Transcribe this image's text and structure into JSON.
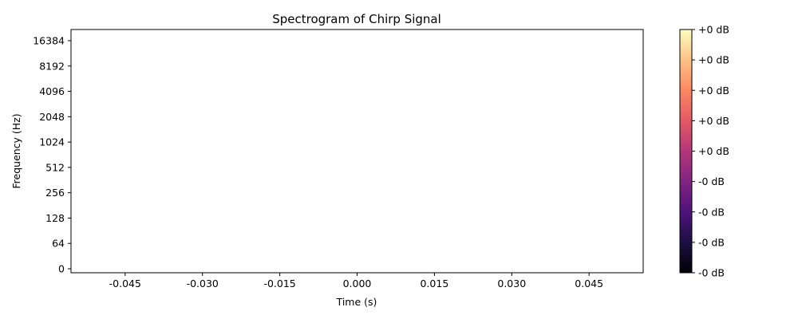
{
  "chart_data": {
    "type": "heatmap",
    "title": "Spectrogram of Chirp Signal",
    "xlabel": "Time (s)",
    "ylabel": "Frequency (Hz)",
    "xlim": [
      -0.0555,
      0.0555
    ],
    "x_ticks": [
      -0.045,
      -0.03,
      -0.015,
      0.0,
      0.015,
      0.03,
      0.045
    ],
    "x_tick_labels": [
      "-0.045",
      "-0.030",
      "-0.015",
      "0.000",
      "0.015",
      "0.030",
      "0.045"
    ],
    "y_scale": "symlog (base 2)",
    "y_tick_labels": [
      "0",
      "64",
      "128",
      "256",
      "512",
      "1024",
      "2048",
      "4096",
      "8192",
      "16384"
    ],
    "grid": false,
    "values": [],
    "colorbar": {
      "colormap": "magma",
      "colors": [
        "#000004",
        "#1c1044",
        "#4f127b",
        "#812581",
        "#b5367a",
        "#e55964",
        "#fb8761",
        "#fec287",
        "#fcfdbf"
      ],
      "tick_labels": [
        "-0 dB",
        "-0 dB",
        "-0 dB",
        "-0 dB",
        "+0 dB",
        "+0 dB",
        "+0 dB",
        "+0 dB",
        "+0 dB"
      ]
    }
  }
}
